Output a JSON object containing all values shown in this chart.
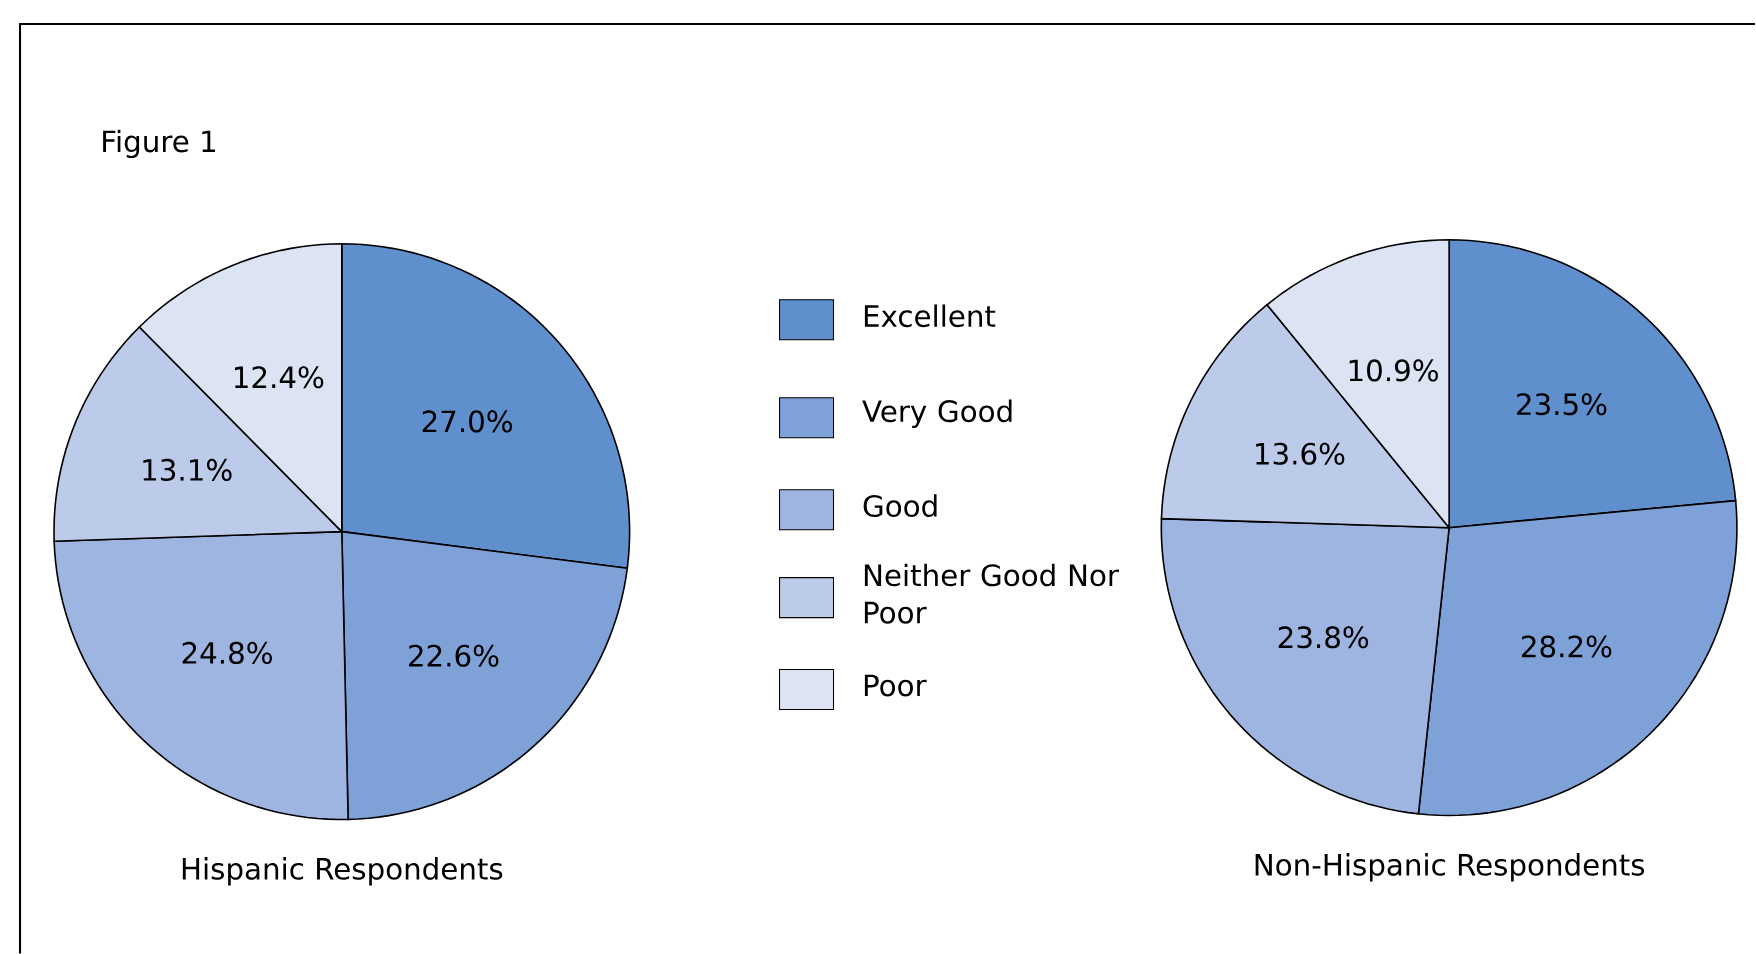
{
  "chart_data": [
    {
      "type": "pie",
      "title": "Hispanic Respondents",
      "annotations": [
        "Figure 1"
      ],
      "legend": "right",
      "categories": [
        "Excellent",
        "Very Good",
        "Good",
        "Neither Good Nor Poor",
        "Poor"
      ],
      "values": [
        27.0,
        22.6,
        24.8,
        13.1,
        12.4
      ],
      "value_labels": [
        "27.0%",
        "22.6%",
        "24.8%",
        "13.1%",
        "12.4%"
      ],
      "colors": [
        "#5f8fcd",
        "#7ea2d8",
        "#9db5e0",
        "#bccbe9",
        "#dce3f3"
      ]
    },
    {
      "type": "pie",
      "title": "Non-Hispanic Respondents",
      "categories": [
        null,
        null,
        null,
        null,
        null
      ],
      "values": [
        23.5,
        28.2,
        23.8,
        13.6,
        10.9
      ],
      "value_labels": [
        "23.5%",
        "28.2%",
        "23.8%",
        "13.6%",
        "10.9%"
      ],
      "colors": [
        "#5f8fcd",
        "#7ea2d8",
        "#9db5e0",
        "#bccbe9",
        "#dce3f3"
      ]
    }
  ]
}
